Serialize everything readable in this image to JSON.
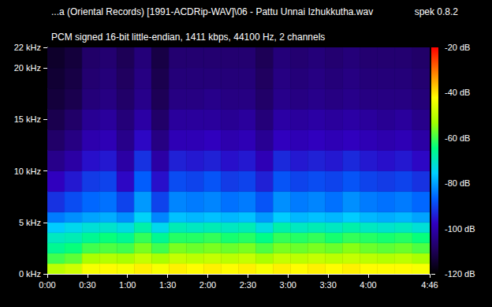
{
  "chart_data": {
    "type": "spectrogram",
    "title": "...a (Oriental Records) [1991-ACDRip-WAV]\\06 - Pattu Unnai Izhukkutha.wav",
    "subtitle": "PCM signed 16-bit little-endian, 1411 kbps, 44100 Hz, 2 channels",
    "annotations": [
      "spek 0.8.2"
    ],
    "xlim": [
      0,
      286
    ],
    "xticks": [
      {
        "value": 0,
        "label": "0:00"
      },
      {
        "value": 30,
        "label": "0:30"
      },
      {
        "value": 60,
        "label": "1:00"
      },
      {
        "value": 90,
        "label": "1:30"
      },
      {
        "value": 120,
        "label": "2:00"
      },
      {
        "value": 150,
        "label": "2:30"
      },
      {
        "value": 180,
        "label": "3:00"
      },
      {
        "value": 210,
        "label": "3:30"
      },
      {
        "value": 240,
        "label": "4:00"
      },
      {
        "value": 286,
        "label": "4:46"
      }
    ],
    "ylim": [
      0,
      22
    ],
    "yticks": [
      {
        "value": 0,
        "label": "0 kHz"
      },
      {
        "value": 5,
        "label": "5 kHz"
      },
      {
        "value": 10,
        "label": "10 kHz"
      },
      {
        "value": 15,
        "label": "15 kHz"
      },
      {
        "value": 20,
        "label": "20 kHz"
      },
      {
        "value": 22,
        "label": "22 kHz"
      }
    ],
    "time_edges": [
      0,
      13,
      26,
      39,
      52,
      65,
      78,
      91,
      104,
      117,
      130,
      143,
      156,
      169,
      182,
      195,
      208,
      221,
      234,
      247,
      260,
      273,
      286
    ],
    "freq_edges": [
      0,
      1,
      2,
      3,
      4,
      5,
      6,
      8,
      10,
      12,
      14,
      16,
      18,
      20,
      22
    ],
    "cells": [
      [
        -50,
        -60,
        -66,
        -70,
        -76,
        -84,
        -92,
        -98,
        -104,
        -108,
        -111,
        -113,
        -114,
        -115
      ],
      [
        -48,
        -58,
        -64,
        -69,
        -74,
        -82,
        -89,
        -95,
        -101,
        -105,
        -108,
        -111,
        -112,
        -113
      ],
      [
        -43,
        -52,
        -60,
        -66,
        -72,
        -80,
        -86,
        -91,
        -96,
        -100,
        -103,
        -106,
        -107,
        -108
      ],
      [
        -42,
        -51,
        -59,
        -64,
        -71,
        -79,
        -85,
        -90,
        -95,
        -99,
        -102,
        -105,
        -106,
        -107
      ],
      [
        -43,
        -52,
        -60,
        -66,
        -73,
        -82,
        -90,
        -97,
        -101,
        -104,
        -106,
        -108,
        -109,
        -110
      ],
      [
        -41,
        -49,
        -56,
        -61,
        -68,
        -75,
        -81,
        -87,
        -92,
        -97,
        -101,
        -104,
        -105,
        -106
      ],
      [
        -43,
        -52,
        -60,
        -66,
        -74,
        -83,
        -90,
        -96,
        -101,
        -105,
        -108,
        -110,
        -111,
        -112
      ],
      [
        -41,
        -49,
        -56,
        -62,
        -69,
        -77,
        -83,
        -89,
        -94,
        -99,
        -102,
        -105,
        -106,
        -107
      ],
      [
        -42,
        -50,
        -57,
        -62,
        -70,
        -78,
        -84,
        -90,
        -95,
        -99,
        -102,
        -105,
        -106,
        -107
      ],
      [
        -41,
        -49,
        -56,
        -61,
        -69,
        -77,
        -83,
        -88,
        -94,
        -98,
        -102,
        -104,
        -106,
        -107
      ],
      [
        -42,
        -50,
        -57,
        -63,
        -70,
        -78,
        -85,
        -91,
        -96,
        -100,
        -103,
        -105,
        -106,
        -107
      ],
      [
        -41,
        -49,
        -56,
        -62,
        -69,
        -77,
        -84,
        -90,
        -95,
        -99,
        -102,
        -105,
        -106,
        -107
      ],
      [
        -43,
        -52,
        -59,
        -65,
        -73,
        -81,
        -88,
        -94,
        -99,
        -103,
        -106,
        -108,
        -109,
        -110
      ],
      [
        -41,
        -49,
        -56,
        -61,
        -68,
        -76,
        -82,
        -88,
        -93,
        -98,
        -101,
        -104,
        -105,
        -106
      ],
      [
        -42,
        -50,
        -57,
        -62,
        -70,
        -78,
        -84,
        -90,
        -95,
        -99,
        -102,
        -105,
        -106,
        -107
      ],
      [
        -41,
        -49,
        -56,
        -61,
        -69,
        -77,
        -83,
        -89,
        -94,
        -98,
        -101,
        -104,
        -105,
        -106
      ],
      [
        -42,
        -50,
        -57,
        -63,
        -70,
        -78,
        -85,
        -90,
        -95,
        -99,
        -102,
        -105,
        -106,
        -107
      ],
      [
        -41,
        -49,
        -55,
        -61,
        -68,
        -76,
        -82,
        -88,
        -93,
        -98,
        -101,
        -104,
        -105,
        -106
      ],
      [
        -42,
        -50,
        -57,
        -62,
        -70,
        -78,
        -84,
        -90,
        -95,
        -99,
        -102,
        -105,
        -106,
        -107
      ],
      [
        -42,
        -51,
        -58,
        -63,
        -71,
        -79,
        -85,
        -91,
        -96,
        -100,
        -103,
        -105,
        -106,
        -107
      ],
      [
        -42,
        -50,
        -57,
        -62,
        -70,
        -78,
        -84,
        -90,
        -95,
        -99,
        -102,
        -105,
        -106,
        -107
      ],
      [
        -43,
        -52,
        -59,
        -64,
        -72,
        -80,
        -86,
        -92,
        -97,
        -101,
        -104,
        -106,
        -107,
        -108
      ]
    ],
    "colorbar": {
      "range": [
        -120,
        -20
      ],
      "ticks": [
        {
          "value": -20,
          "label": "-20 dB"
        },
        {
          "value": -40,
          "label": "-40 dB"
        },
        {
          "value": -60,
          "label": "-60 dB"
        },
        {
          "value": -80,
          "label": "-80 dB"
        },
        {
          "value": -100,
          "label": "-100 dB"
        },
        {
          "value": -120,
          "label": "-120 dB"
        }
      ]
    }
  }
}
